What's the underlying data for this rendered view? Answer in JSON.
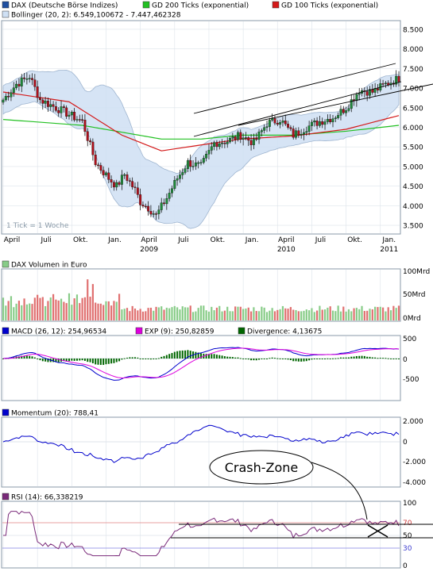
{
  "colors": {
    "bg": "#ffffff",
    "panel_border": "#8a9aa8",
    "grid": "#dde3ea",
    "candle_up": "#1f8a3a",
    "candle_down": "#b0101c",
    "wick": "#000000",
    "boll_fill": "#cfe0f4",
    "boll_line": "#8fa9c8",
    "gd200": "#22c022",
    "gd100": "#d41a1a",
    "vol_up": "#88cc88",
    "vol_down": "#e07070",
    "macd": "#0000cc",
    "exp": "#dd00dd",
    "diverg": "#006600",
    "momentum": "#0000cc",
    "rsi": "#7a2a7a",
    "rsi_line70": "#e08080",
    "rsi_line30": "#8080e0",
    "channel": "#000000"
  },
  "price_panel": {
    "legend": [
      {
        "label": "DAX (Deutsche Börse Indizes)",
        "color": "#1f4fa0"
      },
      {
        "label": "GD 200 Ticks (exponential)",
        "color": "#22c022"
      },
      {
        "label": "GD 100 Ticks (exponential)",
        "color": "#d41a1a"
      }
    ],
    "legend2": {
      "label": "Bollinger (20, 2): 6.549,100672 - 7.447,462328",
      "color": "#8fa9c8"
    },
    "note": "1 Tick = 1 Woche",
    "x_month_labels": [
      "April",
      "Juli",
      "Okt.",
      "Jan.",
      "April",
      "Juli",
      "Okt.",
      "Jan.",
      "April",
      "Juli",
      "Okt.",
      "Jan."
    ],
    "x_year_labels": [
      "2009",
      "2010",
      "2011"
    ]
  },
  "volume_panel": {
    "legend": "DAX Volumen in Euro",
    "ticks": [
      "100Mrd",
      "50Mrd",
      "0Mrd"
    ]
  },
  "macd_panel": {
    "legend": [
      {
        "label": "MACD (26, 12): 254,96534",
        "color": "#0000cc"
      },
      {
        "label": "EXP (9): 250,82859",
        "color": "#dd00dd"
      },
      {
        "label": "Divergence: 4,13675",
        "color": "#006600"
      }
    ],
    "ticks": [
      "500",
      "0",
      "-500"
    ]
  },
  "momentum_panel": {
    "legend": "Momentum (20): 788,41",
    "ticks": [
      "2.000",
      "0",
      "-2.000",
      "-4.000"
    ]
  },
  "rsi_panel": {
    "legend": "RSI (14): 66,338219",
    "ticks": [
      "100",
      "70",
      "50",
      "30",
      "0"
    ]
  },
  "annotation": {
    "callout": "Crash-Zone"
  },
  "chart_data": [
    {
      "type": "candlestick",
      "title": "DAX (Deutsche Börse Indizes)",
      "interval": "1 Tick = 1 Woche",
      "ylim": [
        3300,
        8700
      ],
      "y_ticks": [
        "8.500",
        "8.000",
        "7.500",
        "7.000",
        "6.500",
        "6.000",
        "5.500",
        "5.000",
        "4.500",
        "4.000",
        "3.500"
      ],
      "x_range": [
        "2008-04",
        "2011-02"
      ],
      "close_anchors": {
        "week": [
          0,
          5,
          10,
          14,
          20,
          30,
          35,
          40,
          43,
          46,
          50,
          52,
          55,
          58,
          62,
          66,
          70,
          75,
          80,
          85,
          90,
          95,
          100,
          105,
          110,
          115,
          120,
          125,
          130,
          135,
          140,
          145,
          150
        ],
        "close": [
          6700,
          7100,
          7300,
          6700,
          6500,
          6150,
          5100,
          4700,
          4500,
          4800,
          4400,
          4100,
          3950,
          3750,
          4200,
          4700,
          5100,
          5000,
          5600,
          5650,
          5800,
          5600,
          6100,
          6200,
          5800,
          6000,
          6150,
          6250,
          6500,
          6950,
          6900,
          7100,
          7250
        ]
      },
      "gd200_anchors": {
        "week": [
          0,
          30,
          60,
          75,
          90,
          110,
          130,
          150
        ],
        "value": [
          6200,
          6050,
          5700,
          5700,
          5800,
          5800,
          5900,
          6050
        ]
      },
      "gd100_anchors": {
        "week": [
          0,
          25,
          45,
          60,
          75,
          90,
          110,
          130,
          150
        ],
        "value": [
          6900,
          6650,
          5800,
          5400,
          5550,
          5700,
          5780,
          5950,
          6300
        ]
      }
    },
    {
      "type": "bar",
      "title": "DAX Volumen in Euro",
      "ylim": [
        0,
        100
      ],
      "unit": "Mrd"
    },
    {
      "type": "line",
      "title": "MACD",
      "ylim": [
        -700,
        600
      ],
      "series": [
        {
          "name": "MACD (26, 12)",
          "last": 254.96534
        },
        {
          "name": "EXP (9)",
          "last": 250.82859
        },
        {
          "name": "Divergence",
          "last": 4.13675
        }
      ]
    },
    {
      "type": "line",
      "title": "Momentum (20)",
      "ylim": [
        -4500,
        2300
      ],
      "last": 788.41
    },
    {
      "type": "line",
      "title": "RSI (14)",
      "ylim": [
        0,
        100
      ],
      "last": 66.338219,
      "levels": [
        70,
        50,
        30
      ]
    }
  ]
}
